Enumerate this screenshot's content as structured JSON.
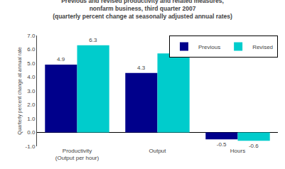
{
  "chart_data": {
    "type": "bar",
    "title": "Previous and revised productivity and related measures,\nnonfarm business, third quarter 2007\n(quarterly percent change at seasonally adjusted annual rates)",
    "categories": [
      "Productivity\n(Output per hour)",
      "Output",
      "Hours"
    ],
    "series": [
      {
        "name": "Previous",
        "color": "#00008B",
        "values": [
          4.9,
          4.3,
          -0.5
        ]
      },
      {
        "name": "Revised",
        "color": "#00CCCC",
        "values": [
          6.3,
          5.7,
          -0.6
        ]
      }
    ],
    "ylabel": "Quarterly percent change at annual rate",
    "ylim": [
      -1.0,
      7.0
    ],
    "yticks": [
      {
        "value": -1.0,
        "label": "-1.0"
      },
      {
        "value": 0.0,
        "label": "0.0"
      },
      {
        "value": 1.0,
        "label": "1.0"
      },
      {
        "value": 2.0,
        "label": "2.0"
      },
      {
        "value": 3.0,
        "label": "3.0"
      },
      {
        "value": 4.0,
        "label": "4.0"
      },
      {
        "value": 5.0,
        "label": "5.0"
      },
      {
        "value": 6.0,
        "label": "6.0"
      },
      {
        "value": 7.0,
        "label": "7.0"
      }
    ],
    "grid": false,
    "legend": "upper right",
    "data_labels": true
  }
}
